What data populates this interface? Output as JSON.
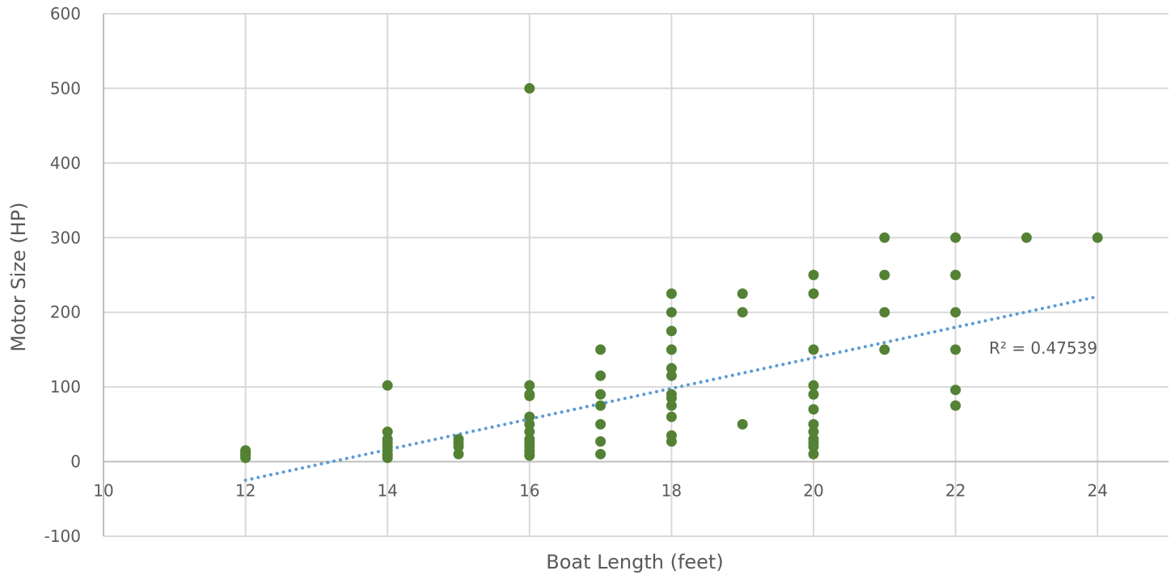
{
  "chart_data": {
    "type": "scatter",
    "title": "",
    "xlabel": "Boat Length (feet)",
    "ylabel": "Motor Size (HP)",
    "xlim": [
      10,
      25
    ],
    "ylim": [
      -100,
      600
    ],
    "x_ticks": [
      "10",
      "12",
      "14",
      "16",
      "18",
      "20",
      "22",
      "24"
    ],
    "y_ticks": [
      "600",
      "500",
      "400",
      "300",
      "200",
      "100",
      "0",
      "-100"
    ],
    "grid": true,
    "legend": "none",
    "colors": {
      "points": "#548235",
      "trendline": "#5B9BD5",
      "grid": "#D9D9D9",
      "axis": "#BFBFBF",
      "text": "#595959"
    },
    "series": [
      {
        "points": [
          [
            12,
            5
          ],
          [
            12,
            8
          ],
          [
            12,
            10
          ],
          [
            12,
            12
          ],
          [
            12,
            15
          ],
          [
            14,
            5
          ],
          [
            14,
            8
          ],
          [
            14,
            10
          ],
          [
            14,
            15
          ],
          [
            14,
            20
          ],
          [
            14,
            25
          ],
          [
            14,
            30
          ],
          [
            14,
            40
          ],
          [
            14,
            102
          ],
          [
            15,
            10
          ],
          [
            15,
            20
          ],
          [
            15,
            25
          ],
          [
            15,
            30
          ],
          [
            16,
            8
          ],
          [
            16,
            10
          ],
          [
            16,
            15
          ],
          [
            16,
            20
          ],
          [
            16,
            25
          ],
          [
            16,
            30
          ],
          [
            16,
            40
          ],
          [
            16,
            50
          ],
          [
            16,
            60
          ],
          [
            16,
            88
          ],
          [
            16,
            90
          ],
          [
            16,
            102
          ],
          [
            16,
            500
          ],
          [
            17,
            10
          ],
          [
            17,
            27
          ],
          [
            17,
            50
          ],
          [
            17,
            75
          ],
          [
            17,
            90
          ],
          [
            17,
            115
          ],
          [
            17,
            150
          ],
          [
            18,
            27
          ],
          [
            18,
            35
          ],
          [
            18,
            60
          ],
          [
            18,
            75
          ],
          [
            18,
            85
          ],
          [
            18,
            90
          ],
          [
            18,
            115
          ],
          [
            18,
            125
          ],
          [
            18,
            150
          ],
          [
            18,
            175
          ],
          [
            18,
            200
          ],
          [
            18,
            225
          ],
          [
            19,
            50
          ],
          [
            19,
            200
          ],
          [
            19,
            225
          ],
          [
            20,
            10
          ],
          [
            20,
            20
          ],
          [
            20,
            25
          ],
          [
            20,
            30
          ],
          [
            20,
            40
          ],
          [
            20,
            50
          ],
          [
            20,
            70
          ],
          [
            20,
            90
          ],
          [
            20,
            102
          ],
          [
            20,
            150
          ],
          [
            20,
            225
          ],
          [
            20,
            250
          ],
          [
            21,
            150
          ],
          [
            21,
            200
          ],
          [
            21,
            250
          ],
          [
            21,
            300
          ],
          [
            22,
            75
          ],
          [
            22,
            96
          ],
          [
            22,
            150
          ],
          [
            22,
            200
          ],
          [
            22,
            250
          ],
          [
            22,
            300
          ],
          [
            23,
            300
          ],
          [
            24,
            300
          ]
        ]
      }
    ],
    "trendline": {
      "type": "linear",
      "x0": 12,
      "y0": -25,
      "x1": 24,
      "y1": 221,
      "r2_label": "R² = 0.47539"
    }
  }
}
